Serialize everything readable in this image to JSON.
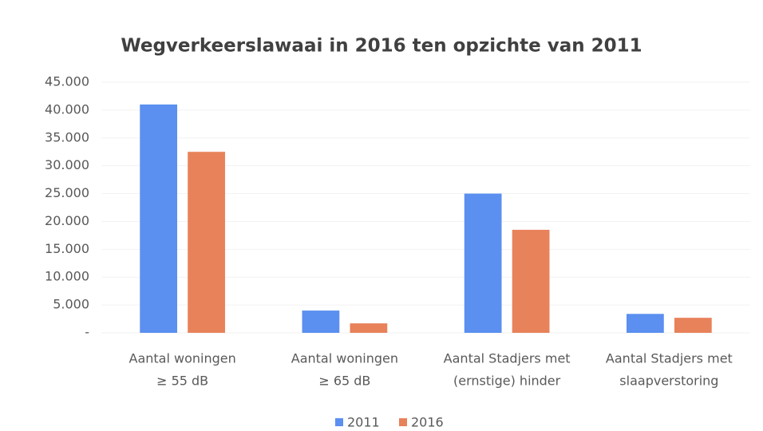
{
  "chart_data": {
    "type": "bar",
    "title": "Wegverkeerslawaai in 2016 ten opzichte van 2011",
    "categories": [
      [
        "Aantal woningen",
        "≥ 55 dB"
      ],
      [
        "Aantal woningen",
        "≥ 65 dB"
      ],
      [
        "Aantal Stadjers met",
        "(ernstige) hinder"
      ],
      [
        "Aantal Stadjers met",
        "slaapverstoring"
      ]
    ],
    "series": [
      {
        "name": "2011",
        "color": "#5b8ff0",
        "values": [
          41000,
          4000,
          25000,
          3400
        ]
      },
      {
        "name": "2016",
        "color": "#e8825a",
        "values": [
          32500,
          1700,
          18500,
          2700
        ]
      }
    ],
    "ylim": [
      0,
      45000
    ],
    "yticks": [
      {
        "value": 0,
        "label": "-"
      },
      {
        "value": 5000,
        "label": "5.000"
      },
      {
        "value": 10000,
        "label": "10.000"
      },
      {
        "value": 15000,
        "label": "15.000"
      },
      {
        "value": 20000,
        "label": "20.000"
      },
      {
        "value": 25000,
        "label": "25.000"
      },
      {
        "value": 30000,
        "label": "30.000"
      },
      {
        "value": 35000,
        "label": "35.000"
      },
      {
        "value": 40000,
        "label": "40.000"
      },
      {
        "value": 45000,
        "label": "45.000"
      }
    ],
    "grid": true,
    "legend": "bottom"
  }
}
